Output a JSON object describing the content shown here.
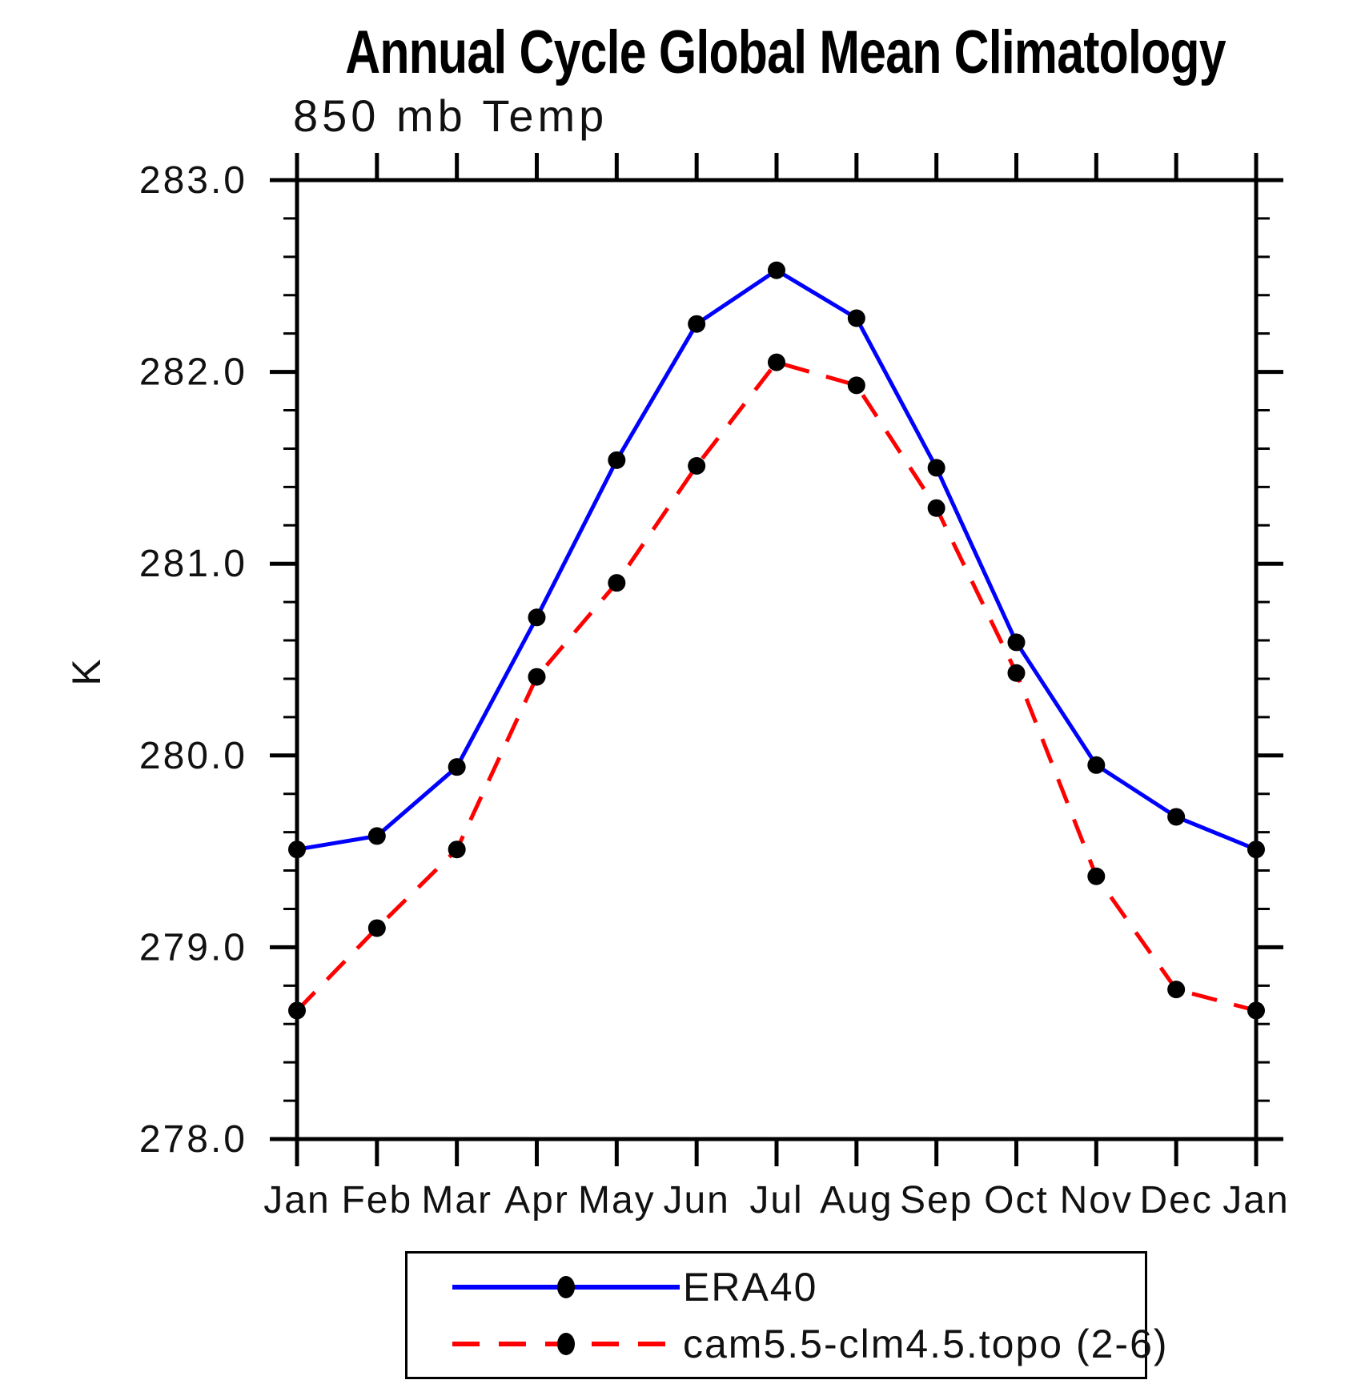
{
  "title": "Annual Cycle Global Mean Climatology",
  "subtitle": "850 mb Temp",
  "chart_data": {
    "type": "line",
    "title": "850 mb Temp",
    "ylabel": "K",
    "ylim": [
      278.0,
      283.0
    ],
    "y_major_step": 1.0,
    "y_minor_per_major": 4,
    "y_tick_labels": [
      "283.0",
      "282.0",
      "281.0",
      "280.0",
      "279.0",
      "278.0"
    ],
    "categories": [
      "Jan",
      "Feb",
      "Mar",
      "Apr",
      "May",
      "Jun",
      "Jul",
      "Aug",
      "Sep",
      "Oct",
      "Nov",
      "Dec",
      "Jan"
    ],
    "grid": false,
    "legend_position": "bottom",
    "series": [
      {
        "name": "ERA40",
        "color": "#0000ff",
        "line_style": "solid",
        "marker": "filled-circle",
        "marker_color": "#000000",
        "values": [
          279.51,
          279.58,
          279.94,
          280.72,
          281.54,
          282.25,
          282.53,
          282.28,
          281.5,
          280.59,
          279.95,
          279.68,
          279.51
        ]
      },
      {
        "name": "cam5.5-clm4.5.topo (2-6)",
        "color": "#ff0000",
        "line_style": "dashed",
        "marker": "filled-circle",
        "marker_color": "#000000",
        "values": [
          278.67,
          279.1,
          279.51,
          280.41,
          280.9,
          281.51,
          282.05,
          281.93,
          281.29,
          280.43,
          279.37,
          278.78,
          278.67
        ]
      }
    ]
  }
}
